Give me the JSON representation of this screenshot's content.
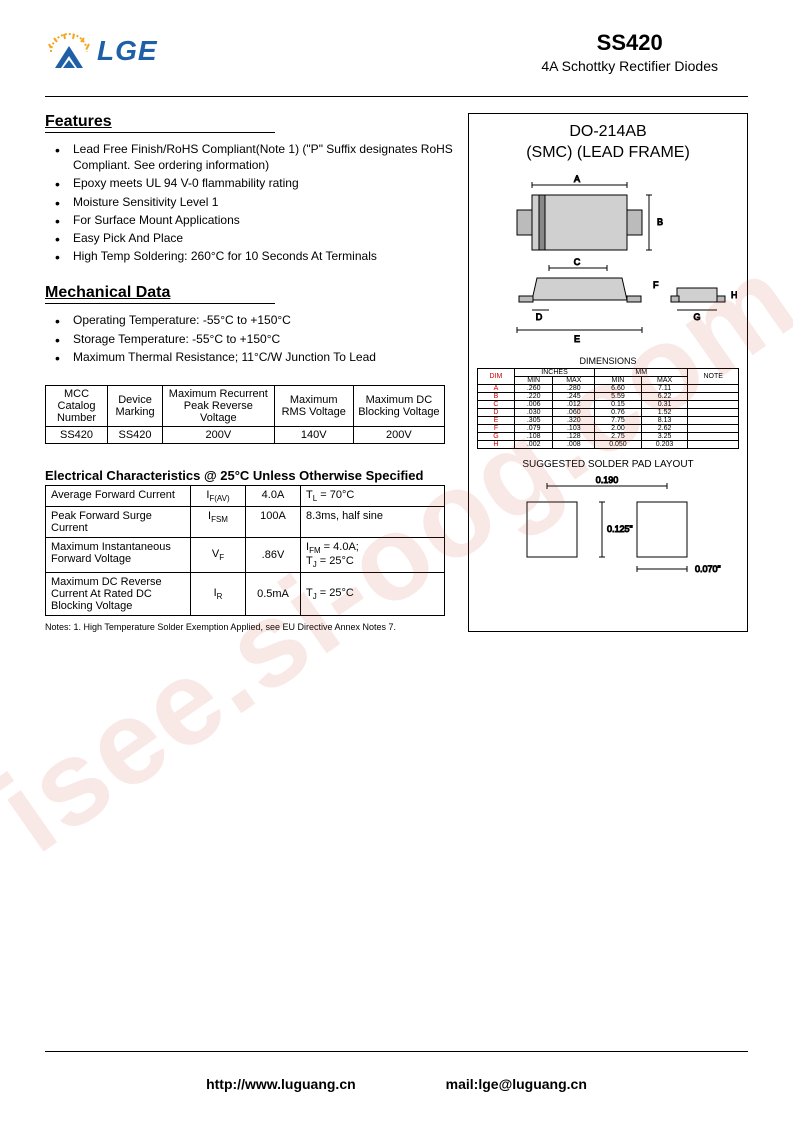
{
  "header": {
    "logo_text": "LGE",
    "part_number": "SS420",
    "part_desc": "4A Schottky Rectifier Diodes"
  },
  "watermark": "isee.si-oog.com",
  "features": {
    "title": "Features",
    "items": [
      "Lead Free Finish/RoHS Compliant(Note 1) (\"P\" Suffix designates RoHS Compliant.  See ordering information)",
      " Epoxy meets UL 94 V-0 flammability rating",
      "Moisture Sensitivity Level 1",
      "For Surface Mount Applications",
      "Easy Pick And Place",
      "High Temp Soldering: 260°C for 10 Seconds At Terminals"
    ]
  },
  "mechanical": {
    "title": "Mechanical Data",
    "items": [
      "Operating Temperature: -55°C to +150°C",
      "Storage Temperature: -55°C to +150°C",
      "Maximum Thermal Resistance; 11°C/W Junction To Lead"
    ]
  },
  "spec_table": {
    "headers": [
      "MCC Catalog Number",
      "Device Marking",
      "Maximum Recurrent Peak Reverse Voltage",
      "Maximum RMS Voltage",
      "Maximum DC Blocking Voltage"
    ],
    "row": [
      "SS420",
      "SS420",
      "200V",
      "140V",
      "200V"
    ]
  },
  "elec": {
    "title": "Electrical Characteristics @ 25°C Unless Otherwise Specified",
    "rows": [
      {
        "name": "Average Forward Current",
        "sym": "I",
        "sub": "F(AV)",
        "val": "4.0A",
        "cond": "T",
        "condsub": "L",
        "condrest": " = 70°C"
      },
      {
        "name": "Peak Forward Surge Current",
        "sym": "I",
        "sub": "FSM",
        "val": "100A",
        "cond": "8.3ms, half sine",
        "condsub": "",
        "condrest": ""
      },
      {
        "name": "Maximum Instantaneous Forward Voltage",
        "sym": "V",
        "sub": "F",
        "val": ".86V",
        "cond": "I",
        "condsub": "FM",
        "condrest": " = 4.0A;",
        "cond2": "T",
        "cond2sub": "J",
        "cond2rest": " = 25°C"
      },
      {
        "name": "Maximum DC Reverse Current At Rated DC Blocking Voltage",
        "sym": "I",
        "sub": "R",
        "val": "0.5mA",
        "cond": "T",
        "condsub": "J",
        "condrest": " = 25°C"
      }
    ]
  },
  "notes": "Notes:   1.   High Temperature Solder Exemption Applied, see EU Directive Annex Notes  7.",
  "package": {
    "title_line1": "DO-214AB",
    "title_line2": "(SMC) (LEAD FRAME)",
    "dim_title": "DIMENSIONS",
    "dim_headers": [
      "DIM",
      "MIN",
      "MAX",
      "MIN",
      "MAX",
      "NOTE"
    ],
    "dim_units": [
      "",
      "INCHES",
      "INCHES",
      "MM",
      "MM",
      ""
    ],
    "dim_rows": [
      [
        "A",
        ".260",
        ".280",
        "6.60",
        "7.11",
        ""
      ],
      [
        "B",
        ".220",
        ".245",
        "5.59",
        "6.22",
        ""
      ],
      [
        "C",
        ".006",
        ".012",
        "0.15",
        "0.31",
        ""
      ],
      [
        "D",
        ".030",
        ".060",
        "0.76",
        "1.52",
        ""
      ],
      [
        "E",
        ".305",
        ".320",
        "7.75",
        "8.13",
        ""
      ],
      [
        "F",
        ".079",
        ".103",
        "2.00",
        "2.62",
        ""
      ],
      [
        "G",
        ".108",
        ".128",
        "2.75",
        "3.25",
        ""
      ],
      [
        "H",
        ".002",
        ".008",
        "0.050",
        "0.203",
        ""
      ]
    ],
    "solder_title": "SUGGESTED SOLDER PAD LAYOUT",
    "solder_dims": {
      "w": "0.190",
      "h": "0.125\"",
      "gap": "0.070\""
    }
  },
  "footer": {
    "url": "http://www.luguang.cn",
    "mail": "mail:lge@luguang.cn"
  }
}
